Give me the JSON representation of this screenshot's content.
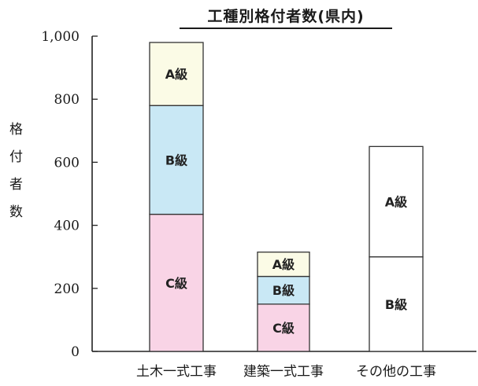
{
  "chart_data": {
    "type": "bar",
    "stacked": true,
    "title": "工種別格付者数(県内)",
    "ylabel": "格付者数",
    "xlabel": "",
    "ylim": [
      0,
      1000
    ],
    "yticks": [
      0,
      200,
      400,
      600,
      800,
      1000
    ],
    "ytick_labels": [
      "0",
      "200",
      "400",
      "600",
      "800",
      "1,000"
    ],
    "grid": false,
    "categories": [
      "土木一式工事",
      "建築一式工事",
      "その他の工事"
    ],
    "series": [
      {
        "name": "C級",
        "values": [
          435,
          150,
          0
        ],
        "color": "#f9d4e6"
      },
      {
        "name": "B級",
        "values": [
          345,
          88,
          300
        ],
        "color": "#c9e8f5"
      },
      {
        "name": "A級",
        "values": [
          200,
          77,
          350
        ],
        "color": "#fbfbe6"
      }
    ],
    "other_color": "#ffffff"
  }
}
